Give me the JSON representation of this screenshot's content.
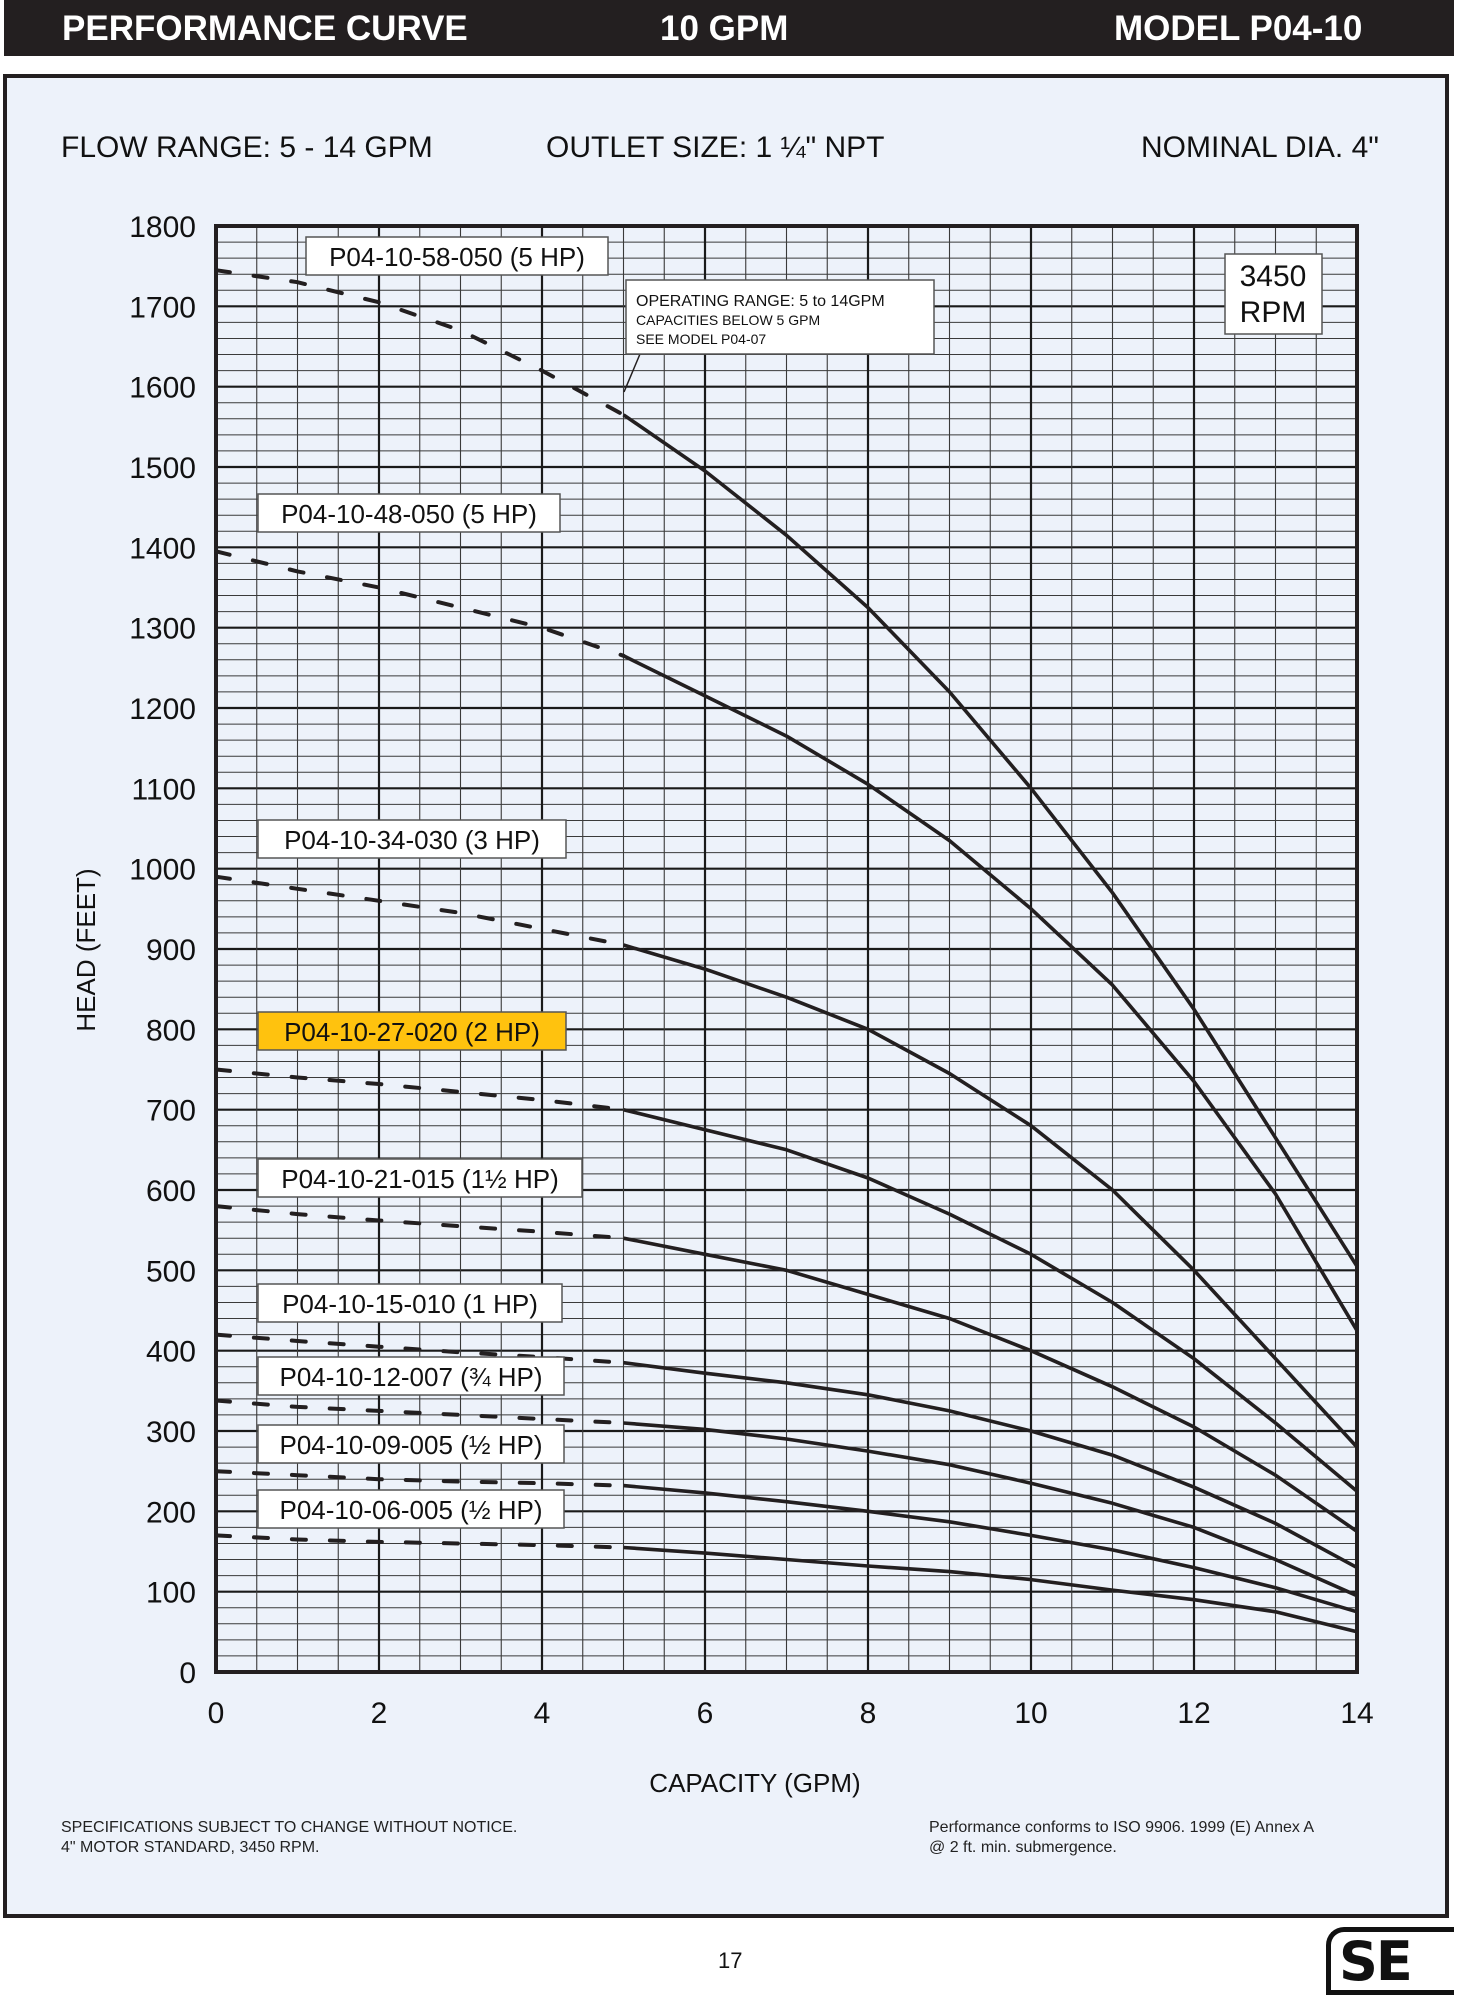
{
  "header": {
    "left": "PERFORMANCE CURVE",
    "center": "10 GPM",
    "right": "MODEL  P04-10"
  },
  "info": {
    "flow_range": "FLOW RANGE: 5 - 14 GPM",
    "outlet_size": "OUTLET SIZE: 1 ¼\" NPT",
    "nominal_dia": "NOMINAL DIA. 4\""
  },
  "footer": {
    "left_line1": "SPECIFICATIONS SUBJECT TO CHANGE WITHOUT NOTICE.",
    "left_line2": "4\" MOTOR STANDARD, 3450 RPM.",
    "right_line1": "Performance conforms to ISO 9906. 1999 (E) Annex A",
    "right_line2": "@ 2 ft. min. submergence.",
    "page_number": "17",
    "logo_text": "SE"
  },
  "colors": {
    "curve": "#231f20",
    "highlight": "#ffc20e",
    "plot_background": "#edf2fa"
  },
  "chart_data": {
    "type": "line",
    "xlabel": "CAPACITY (GPM)",
    "ylabel": "HEAD (FEET)",
    "xlim": [
      0,
      14
    ],
    "ylim": [
      0,
      1800
    ],
    "x_ticks": [
      0,
      2,
      4,
      6,
      8,
      10,
      12,
      14
    ],
    "y_ticks": [
      0,
      100,
      200,
      300,
      400,
      500,
      600,
      700,
      800,
      900,
      1000,
      1100,
      1200,
      1300,
      1400,
      1500,
      1600,
      1700,
      1800
    ],
    "grid": true,
    "rpm_label_line1": "3450",
    "rpm_label_line2": "RPM",
    "operating_range_note": [
      "OPERATING RANGE: 5 to 14GPM",
      "CAPACITIES BELOW 5 GPM",
      "SEE MODEL P04-07"
    ],
    "dashed_below_x": 5,
    "x": [
      0,
      1,
      2,
      3,
      4,
      5,
      6,
      7,
      8,
      9,
      10,
      11,
      12,
      13,
      14
    ],
    "series": [
      {
        "name": "P04-10-58-050 (5 HP)",
        "highlight": false,
        "values": [
          1745,
          1730,
          1705,
          1670,
          1620,
          1565,
          1495,
          1415,
          1325,
          1220,
          1100,
          970,
          825,
          665,
          505
        ]
      },
      {
        "name": "P04-10-48-050 (5 HP)",
        "highlight": false,
        "values": [
          1395,
          1370,
          1350,
          1325,
          1300,
          1265,
          1215,
          1165,
          1105,
          1035,
          950,
          855,
          735,
          595,
          425
        ]
      },
      {
        "name": "P04-10-34-030 (3 HP)",
        "highlight": false,
        "values": [
          990,
          975,
          960,
          945,
          925,
          905,
          875,
          840,
          800,
          745,
          680,
          600,
          500,
          390,
          280
        ]
      },
      {
        "name": "P04-10-27-020 (2 HP)",
        "highlight": true,
        "values": [
          750,
          740,
          732,
          722,
          712,
          700,
          675,
          650,
          615,
          570,
          520,
          460,
          390,
          310,
          225
        ]
      },
      {
        "name": "P04-10-21-015 (1½ HP)",
        "highlight": false,
        "values": [
          580,
          570,
          562,
          555,
          548,
          540,
          520,
          500,
          470,
          440,
          400,
          355,
          305,
          245,
          175
        ]
      },
      {
        "name": "P04-10-15-010 (1 HP)",
        "highlight": false,
        "values": [
          420,
          412,
          405,
          398,
          392,
          385,
          372,
          360,
          345,
          325,
          300,
          270,
          230,
          185,
          130
        ]
      },
      {
        "name": "P04-10-12-007 (¾ HP)",
        "highlight": false,
        "values": [
          338,
          330,
          325,
          320,
          315,
          310,
          302,
          290,
          275,
          258,
          235,
          210,
          180,
          140,
          95
        ]
      },
      {
        "name": "P04-10-09-005 (½ HP)",
        "highlight": false,
        "values": [
          250,
          245,
          240,
          237,
          235,
          232,
          223,
          212,
          200,
          187,
          170,
          152,
          130,
          105,
          75
        ]
      },
      {
        "name": "P04-10-06-005 (½ HP)",
        "highlight": false,
        "values": [
          170,
          165,
          162,
          160,
          158,
          155,
          148,
          140,
          132,
          125,
          115,
          102,
          90,
          75,
          50
        ]
      }
    ]
  }
}
